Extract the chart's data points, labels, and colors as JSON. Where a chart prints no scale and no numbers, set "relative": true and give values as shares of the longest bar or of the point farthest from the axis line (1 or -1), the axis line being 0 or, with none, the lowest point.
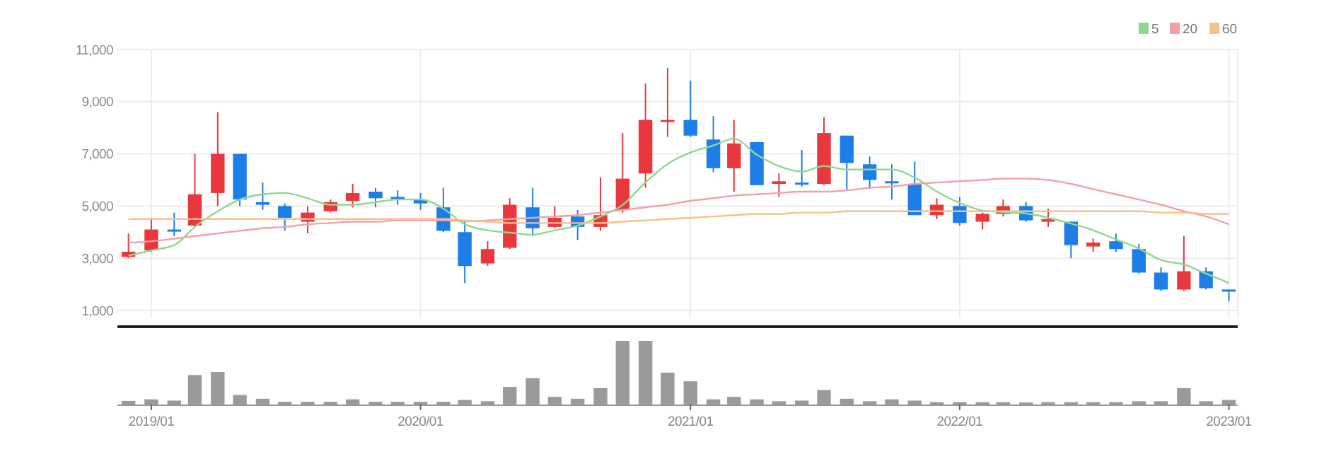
{
  "chart_data": [
    {
      "type": "candlestick",
      "x": [
        "2018-12",
        "2019-01",
        "2019-02",
        "2019-03",
        "2019-04",
        "2019-05",
        "2019-06",
        "2019-07",
        "2019-08",
        "2019-09",
        "2019-10",
        "2019-11",
        "2019-12",
        "2020-01",
        "2020-02",
        "2020-03",
        "2020-04",
        "2020-05",
        "2020-06",
        "2020-07",
        "2020-08",
        "2020-09",
        "2020-10",
        "2020-11",
        "2020-12",
        "2021-01",
        "2021-02",
        "2021-03",
        "2021-04",
        "2021-05",
        "2021-06",
        "2021-07",
        "2021-08",
        "2021-09",
        "2021-10",
        "2021-11",
        "2021-12",
        "2022-01",
        "2022-02",
        "2022-03",
        "2022-04",
        "2022-05",
        "2022-06",
        "2022-07",
        "2022-08",
        "2022-09",
        "2022-10",
        "2022-11",
        "2022-12",
        "2023-01"
      ],
      "ohlc": [
        [
          3050,
          3950,
          3000,
          3250
        ],
        [
          3300,
          4550,
          3250,
          4100
        ],
        [
          4100,
          4750,
          3850,
          4050
        ],
        [
          4250,
          7000,
          4200,
          5450
        ],
        [
          5500,
          8600,
          5000,
          7000
        ],
        [
          7000,
          7000,
          5000,
          5250
        ],
        [
          5150,
          5900,
          4850,
          5050
        ],
        [
          5000,
          5100,
          4050,
          4550
        ],
        [
          4400,
          5000,
          3950,
          4750
        ],
        [
          4800,
          5250,
          4750,
          5150
        ],
        [
          5200,
          5850,
          4950,
          5500
        ],
        [
          5550,
          5700,
          4950,
          5300
        ],
        [
          5350,
          5600,
          5050,
          5300
        ],
        [
          5250,
          5500,
          4850,
          5100
        ],
        [
          4950,
          5700,
          4000,
          4050
        ],
        [
          4000,
          4400,
          2050,
          2700
        ],
        [
          2800,
          3650,
          2700,
          3350
        ],
        [
          3400,
          5300,
          3350,
          5050
        ],
        [
          4950,
          5700,
          3850,
          4150
        ],
        [
          4200,
          5000,
          4150,
          4550
        ],
        [
          4600,
          4850,
          3700,
          4200
        ],
        [
          4200,
          6100,
          4050,
          4650
        ],
        [
          4850,
          7800,
          4750,
          6050
        ],
        [
          6250,
          9700,
          5700,
          8300
        ],
        [
          8250,
          10300,
          7650,
          8300
        ],
        [
          8300,
          9800,
          7650,
          7700
        ],
        [
          7550,
          8450,
          6300,
          6450
        ],
        [
          6450,
          8300,
          5550,
          7400
        ],
        [
          7450,
          7450,
          5800,
          5800
        ],
        [
          5850,
          6250,
          5350,
          5950
        ],
        [
          5900,
          7150,
          5750,
          5850
        ],
        [
          5850,
          8400,
          5800,
          7800
        ],
        [
          7700,
          7700,
          5600,
          6650
        ],
        [
          6600,
          6900,
          5650,
          6000
        ],
        [
          5950,
          6600,
          5250,
          5900
        ],
        [
          5850,
          6700,
          4650,
          4650
        ],
        [
          4650,
          5300,
          4500,
          5050
        ],
        [
          5000,
          5350,
          4250,
          4350
        ],
        [
          4400,
          4750,
          4100,
          4700
        ],
        [
          4700,
          5250,
          4600,
          5000
        ],
        [
          5000,
          5150,
          4400,
          4450
        ],
        [
          4400,
          4900,
          4200,
          4500
        ],
        [
          4400,
          4400,
          3000,
          3500
        ],
        [
          3450,
          3750,
          3250,
          3600
        ],
        [
          3650,
          3950,
          3250,
          3350
        ],
        [
          3350,
          3550,
          2400,
          2450
        ],
        [
          2450,
          2650,
          1750,
          1800
        ],
        [
          1800,
          3850,
          1750,
          2500
        ],
        [
          2500,
          2650,
          1800,
          1850
        ],
        [
          1800,
          1800,
          1350,
          1750
        ]
      ],
      "colors": [
        "#e8383d",
        "#e8383d",
        "#1e7ee8",
        "#e8383d",
        "#e8383d",
        "#1e7ee8",
        "#1e7ee8",
        "#1e7ee8",
        "#e8383d",
        "#e8383d",
        "#e8383d",
        "#1e7ee8",
        "#1e7ee8",
        "#1e7ee8",
        "#1e7ee8",
        "#1e7ee8",
        "#e8383d",
        "#e8383d",
        "#1e7ee8",
        "#e8383d",
        "#1e7ee8",
        "#e8383d",
        "#e8383d",
        "#e8383d",
        "#e8383d",
        "#1e7ee8",
        "#1e7ee8",
        "#e8383d",
        "#1e7ee8",
        "#e8383d",
        "#1e7ee8",
        "#e8383d",
        "#1e7ee8",
        "#1e7ee8",
        "#1e7ee8",
        "#1e7ee8",
        "#e8383d",
        "#1e7ee8",
        "#e8383d",
        "#e8383d",
        "#1e7ee8",
        "#e8383d",
        "#1e7ee8",
        "#e8383d",
        "#1e7ee8",
        "#1e7ee8",
        "#1e7ee8",
        "#e8383d",
        "#1e7ee8",
        "#1e7ee8"
      ],
      "series": [
        {
          "name": "5",
          "type": "line",
          "color": "#8fd88f",
          "values": [
            3100,
            3300,
            3500,
            4200,
            4800,
            5250,
            5450,
            5500,
            5300,
            5050,
            5050,
            5150,
            5250,
            5250,
            4900,
            4300,
            4070,
            3980,
            3900,
            4070,
            4250,
            4600,
            5040,
            5910,
            6610,
            7050,
            7320,
            7580,
            6970,
            6530,
            6320,
            6530,
            6400,
            6400,
            6400,
            6090,
            5560,
            5120,
            4830,
            4770,
            4720,
            4550,
            4330,
            4070,
            3720,
            3370,
            2930,
            2760,
            2410,
            2050
          ]
        },
        {
          "name": "20",
          "type": "line",
          "color": "#f4a0a8",
          "values": [
            3600,
            3650,
            3750,
            3850,
            3950,
            4050,
            4150,
            4200,
            4300,
            4350,
            4400,
            4400,
            4450,
            4450,
            4450,
            4420,
            4450,
            4500,
            4550,
            4600,
            4650,
            4750,
            4850,
            4950,
            5050,
            5200,
            5300,
            5400,
            5450,
            5500,
            5550,
            5550,
            5600,
            5700,
            5750,
            5850,
            5900,
            5950,
            6000,
            6050,
            6050,
            6000,
            5850,
            5650,
            5450,
            5250,
            5050,
            4800,
            4600,
            4300
          ]
        },
        {
          "name": "60",
          "type": "line",
          "color": "#f8c08a",
          "values": [
            4500,
            4500,
            4500,
            4500,
            4500,
            4500,
            4500,
            4500,
            4500,
            4500,
            4500,
            4500,
            4500,
            4500,
            4500,
            4450,
            4400,
            4350,
            4350,
            4350,
            4350,
            4350,
            4400,
            4450,
            4500,
            4550,
            4600,
            4650,
            4700,
            4700,
            4750,
            4750,
            4800,
            4800,
            4800,
            4800,
            4800,
            4800,
            4800,
            4800,
            4800,
            4800,
            4800,
            4800,
            4800,
            4800,
            4750,
            4750,
            4700,
            4700
          ]
        }
      ],
      "xlim": [
        "2018-11-16",
        "2023-01-13"
      ],
      "xticks": [
        {
          "value": "2019-01",
          "label": null
        },
        {
          "value": "2020-01",
          "label": null
        },
        {
          "value": "2021-01",
          "label": null
        },
        {
          "value": "2022-01",
          "label": null
        },
        {
          "value": "2023-01",
          "label": null
        }
      ],
      "ylim": [
        700,
        11000
      ],
      "yticks": [
        {
          "value": 1000,
          "label": "1,000"
        },
        {
          "value": 3000,
          "label": "3,000"
        },
        {
          "value": 5000,
          "label": "5,000"
        },
        {
          "value": 7000,
          "label": "7,000"
        },
        {
          "value": 9000,
          "label": "9,000"
        },
        {
          "value": 11000,
          "label": "11,000"
        }
      ],
      "grid": true,
      "legend": "top right",
      "tick_labels": "y"
    },
    {
      "type": "bar",
      "relative": true,
      "color": "#9a9a9a",
      "tick_labels": "x",
      "x": [
        "2018-12",
        "2019-01",
        "2019-02",
        "2019-03",
        "2019-04",
        "2019-05",
        "2019-06",
        "2019-07",
        "2019-08",
        "2019-09",
        "2019-10",
        "2019-11",
        "2019-12",
        "2020-01",
        "2020-02",
        "2020-03",
        "2020-04",
        "2020-05",
        "2020-06",
        "2020-07",
        "2020-08",
        "2020-09",
        "2020-10",
        "2020-11",
        "2020-12",
        "2021-01",
        "2021-02",
        "2021-03",
        "2021-04",
        "2021-05",
        "2021-06",
        "2021-07",
        "2021-08",
        "2021-09",
        "2021-10",
        "2021-11",
        "2021-12",
        "2022-01",
        "2022-02",
        "2022-03",
        "2022-04",
        "2022-05",
        "2022-06",
        "2022-07",
        "2022-08",
        "2022-09",
        "2022-10",
        "2022-11",
        "2022-12",
        "2023-01"
      ],
      "values": [
        0.035,
        0.06,
        0.04,
        0.45,
        0.5,
        0.13,
        0.07,
        0.02,
        0.02,
        0.02,
        0.06,
        0.02,
        0.02,
        0.02,
        0.02,
        0.05,
        0.03,
        0.26,
        0.4,
        0.1,
        0.07,
        0.24,
        1,
        1,
        0.49,
        0.35,
        0.06,
        0.1,
        0.06,
        0.03,
        0.04,
        0.21,
        0.07,
        0.03,
        0.06,
        0.04,
        0.015,
        0.015,
        0.015,
        0.015,
        0.01,
        0.015,
        0.015,
        0.015,
        0.015,
        0.03,
        0.03,
        0.24,
        0.03,
        0.05
      ],
      "xlim": [
        "2018-11-16",
        "2023-01-13"
      ],
      "xticks": [
        {
          "value": "2019-01",
          "label": "2019/01"
        },
        {
          "value": "2020-01",
          "label": "2020/01"
        },
        {
          "value": "2021-01",
          "label": "2021/01"
        },
        {
          "value": "2022-01",
          "label": "2022/01"
        },
        {
          "value": "2023-01",
          "label": "2023/01"
        }
      ]
    }
  ]
}
